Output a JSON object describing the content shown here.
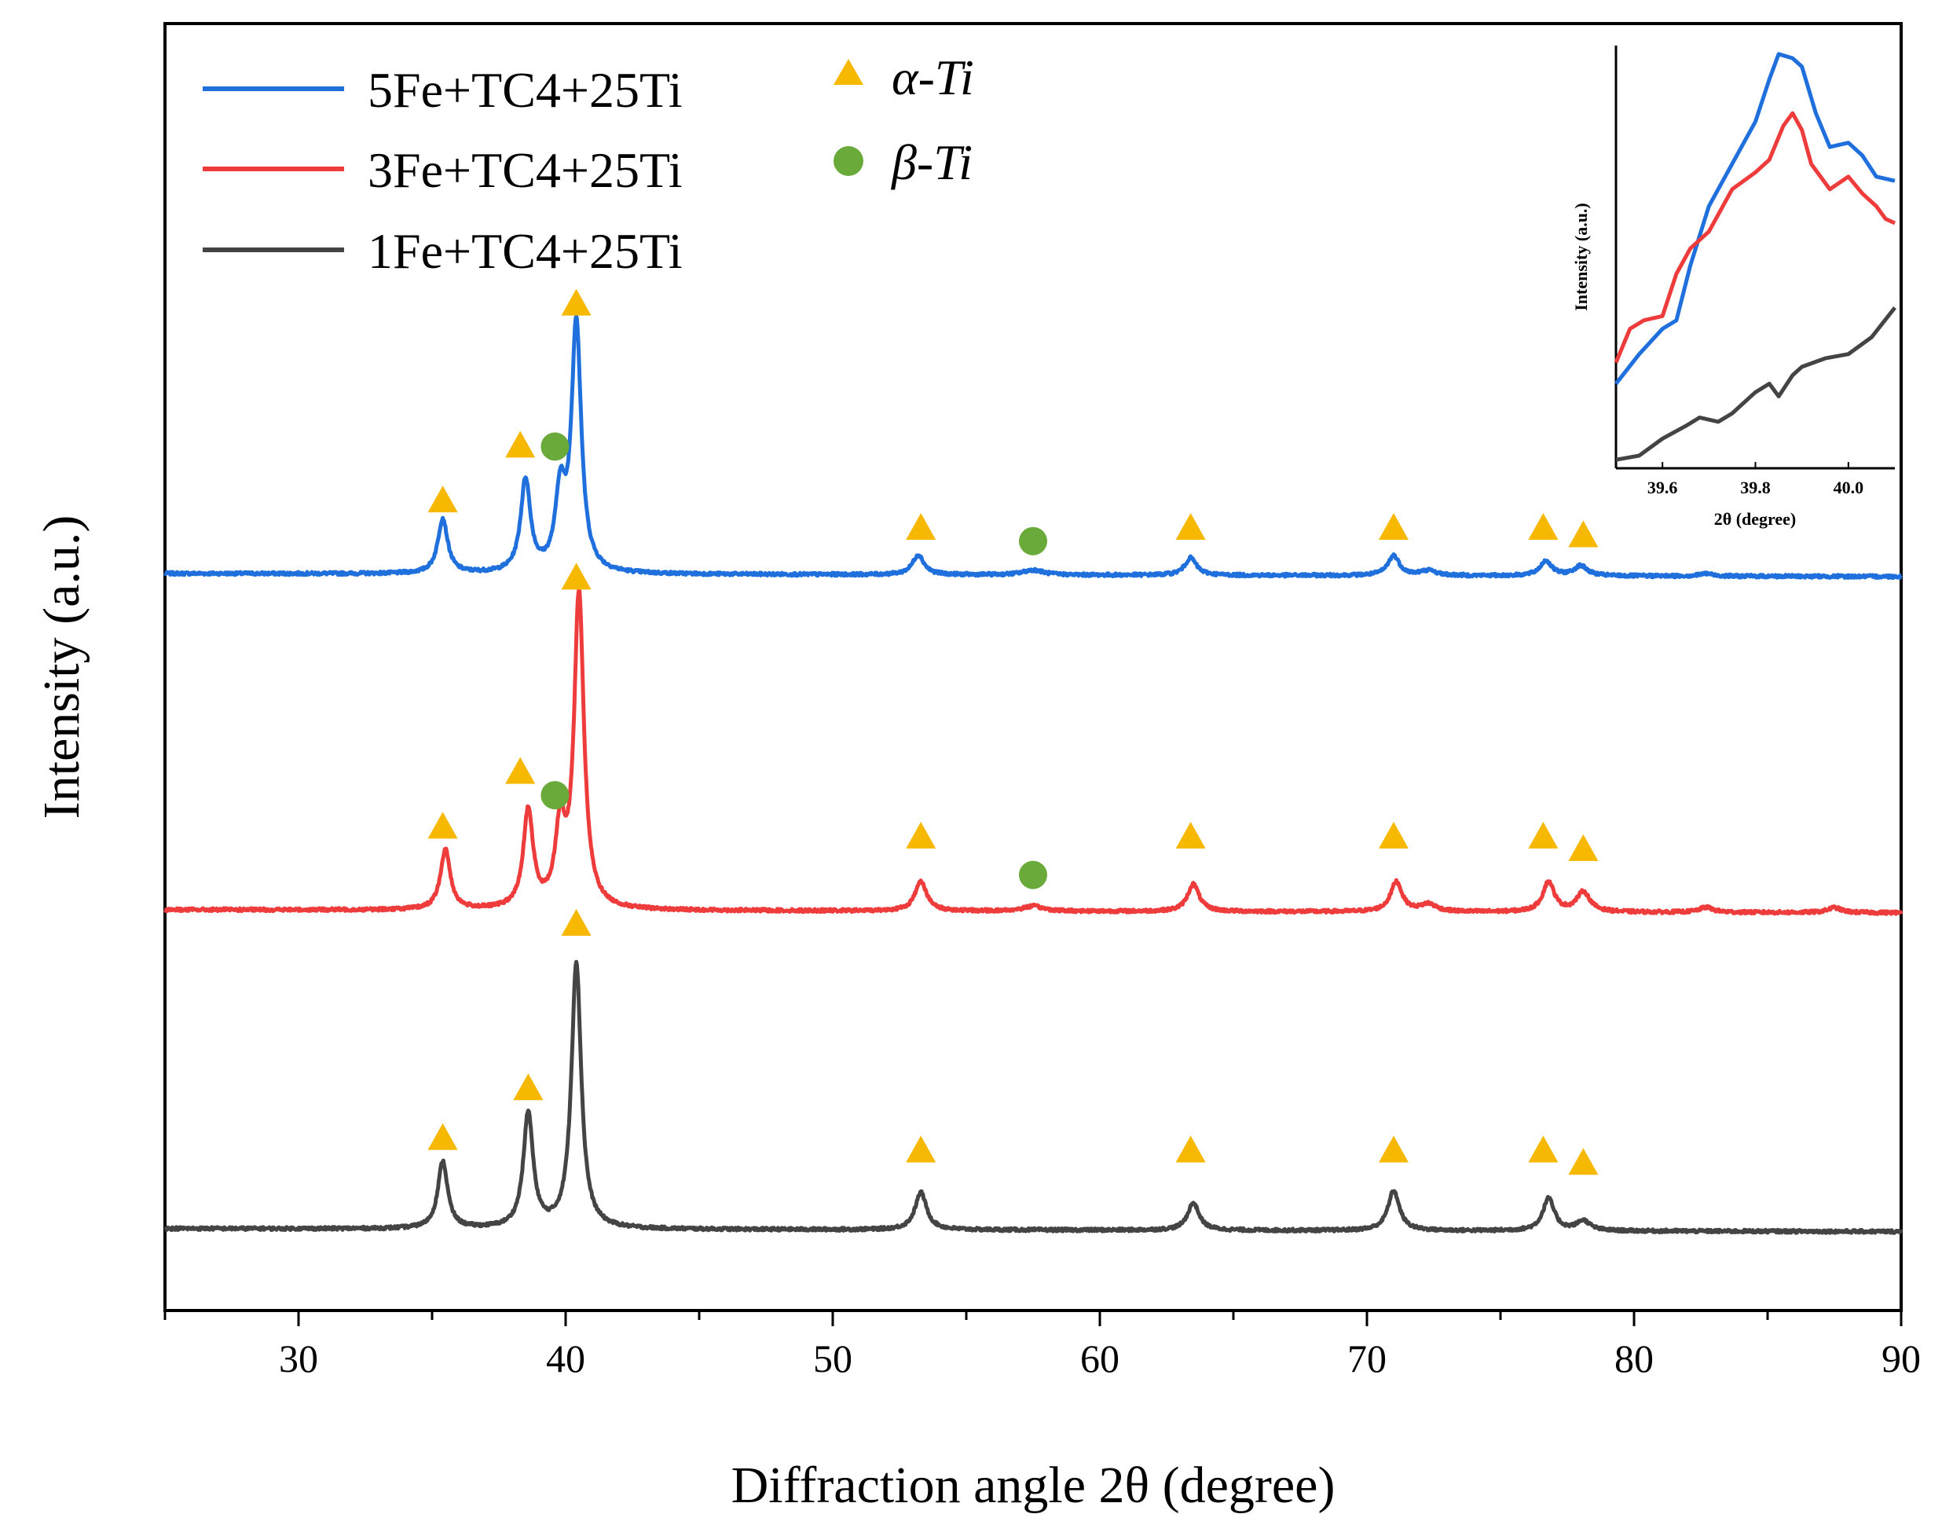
{
  "chart_data": {
    "type": "line",
    "title": "",
    "xlabel": "Diffraction angle 2θ (degree)",
    "ylabel": "Intensity (a.u.)",
    "xlim": [
      25,
      90
    ],
    "x_ticks": [
      30,
      40,
      50,
      60,
      70,
      80,
      90
    ],
    "grid": false,
    "legend_position": "top-left",
    "colors": {
      "blue": "#1f6fdc",
      "red": "#ee3b3b",
      "gray": "#444444",
      "alpha": "#f6b800",
      "beta": "#6aaa3a"
    },
    "series": [
      {
        "name": "5Fe+TC4+25Ti",
        "color": "#1f6fdc",
        "baseline": 0.0,
        "peaks": [
          {
            "x": 35.4,
            "h": 0.22,
            "w": 0.22
          },
          {
            "x": 38.5,
            "h": 0.37,
            "w": 0.22
          },
          {
            "x": 39.8,
            "h": 0.3,
            "w": 0.22
          },
          {
            "x": 40.4,
            "h": 1.0,
            "w": 0.22
          },
          {
            "x": 53.2,
            "h": 0.08,
            "w": 0.26
          },
          {
            "x": 57.5,
            "h": 0.02,
            "w": 0.45
          },
          {
            "x": 63.4,
            "h": 0.07,
            "w": 0.26
          },
          {
            "x": 71.0,
            "h": 0.08,
            "w": 0.26
          },
          {
            "x": 72.3,
            "h": 0.02,
            "w": 0.35
          },
          {
            "x": 76.7,
            "h": 0.06,
            "w": 0.26
          },
          {
            "x": 78.0,
            "h": 0.04,
            "w": 0.3
          },
          {
            "x": 82.7,
            "h": 0.01,
            "w": 0.3
          }
        ]
      },
      {
        "name": "3Fe+TC4+25Ti",
        "color": "#ee3b3b",
        "baseline": -1.35,
        "peaks": [
          {
            "x": 35.5,
            "h": 0.24,
            "w": 0.22
          },
          {
            "x": 38.6,
            "h": 0.39,
            "w": 0.22
          },
          {
            "x": 39.8,
            "h": 0.31,
            "w": 0.22
          },
          {
            "x": 40.5,
            "h": 1.26,
            "w": 0.22
          },
          {
            "x": 53.3,
            "h": 0.12,
            "w": 0.26
          },
          {
            "x": 57.5,
            "h": 0.02,
            "w": 0.45
          },
          {
            "x": 63.5,
            "h": 0.11,
            "w": 0.26
          },
          {
            "x": 71.1,
            "h": 0.12,
            "w": 0.26
          },
          {
            "x": 72.3,
            "h": 0.03,
            "w": 0.35
          },
          {
            "x": 76.8,
            "h": 0.12,
            "w": 0.26
          },
          {
            "x": 78.1,
            "h": 0.08,
            "w": 0.3
          },
          {
            "x": 82.7,
            "h": 0.02,
            "w": 0.3
          },
          {
            "x": 87.5,
            "h": 0.02,
            "w": 0.3
          }
        ]
      },
      {
        "name": "1Fe+TC4+25Ti",
        "color": "#444444",
        "baseline": -2.63,
        "peaks": [
          {
            "x": 35.4,
            "h": 0.27,
            "w": 0.22
          },
          {
            "x": 38.6,
            "h": 0.46,
            "w": 0.22
          },
          {
            "x": 40.4,
            "h": 1.07,
            "w": 0.22
          },
          {
            "x": 53.3,
            "h": 0.15,
            "w": 0.26
          },
          {
            "x": 63.5,
            "h": 0.11,
            "w": 0.26
          },
          {
            "x": 71.0,
            "h": 0.16,
            "w": 0.26
          },
          {
            "x": 76.8,
            "h": 0.13,
            "w": 0.26
          },
          {
            "x": 78.1,
            "h": 0.04,
            "w": 0.3
          }
        ]
      }
    ],
    "markers": [
      {
        "series": 0,
        "phase": "alpha",
        "x": 35.4,
        "y": 0.29
      },
      {
        "series": 0,
        "phase": "alpha",
        "x": 38.3,
        "y": 0.51
      },
      {
        "series": 0,
        "phase": "beta",
        "x": 39.6,
        "y": 0.51
      },
      {
        "series": 0,
        "phase": "alpha",
        "x": 40.4,
        "y": 1.08
      },
      {
        "series": 0,
        "phase": "alpha",
        "x": 53.3,
        "y": 0.18
      },
      {
        "series": 0,
        "phase": "beta",
        "x": 57.5,
        "y": 0.13
      },
      {
        "series": 0,
        "phase": "alpha",
        "x": 63.4,
        "y": 0.18
      },
      {
        "series": 0,
        "phase": "alpha",
        "x": 71.0,
        "y": 0.18
      },
      {
        "series": 0,
        "phase": "alpha",
        "x": 76.6,
        "y": 0.18
      },
      {
        "series": 0,
        "phase": "alpha",
        "x": 78.1,
        "y": 0.15
      },
      {
        "series": 1,
        "phase": "alpha",
        "x": 35.4,
        "y": -1.02
      },
      {
        "series": 1,
        "phase": "alpha",
        "x": 38.3,
        "y": -0.8
      },
      {
        "series": 1,
        "phase": "beta",
        "x": 39.6,
        "y": -0.89
      },
      {
        "series": 1,
        "phase": "alpha",
        "x": 40.4,
        "y": -0.02
      },
      {
        "series": 1,
        "phase": "alpha",
        "x": 53.3,
        "y": -1.06
      },
      {
        "series": 1,
        "phase": "beta",
        "x": 57.5,
        "y": -1.21
      },
      {
        "series": 1,
        "phase": "alpha",
        "x": 63.4,
        "y": -1.06
      },
      {
        "series": 1,
        "phase": "alpha",
        "x": 71.0,
        "y": -1.06
      },
      {
        "series": 1,
        "phase": "alpha",
        "x": 76.6,
        "y": -1.06
      },
      {
        "series": 1,
        "phase": "alpha",
        "x": 78.1,
        "y": -1.11
      },
      {
        "series": 2,
        "phase": "alpha",
        "x": 35.4,
        "y": -2.27
      },
      {
        "series": 2,
        "phase": "alpha",
        "x": 38.6,
        "y": -2.07
      },
      {
        "series": 2,
        "phase": "alpha",
        "x": 40.4,
        "y": -1.41
      },
      {
        "series": 2,
        "phase": "alpha",
        "x": 53.3,
        "y": -2.32
      },
      {
        "series": 2,
        "phase": "alpha",
        "x": 63.4,
        "y": -2.32
      },
      {
        "series": 2,
        "phase": "alpha",
        "x": 71.0,
        "y": -2.32
      },
      {
        "series": 2,
        "phase": "alpha",
        "x": 76.6,
        "y": -2.32
      },
      {
        "series": 2,
        "phase": "alpha",
        "x": 78.1,
        "y": -2.37
      }
    ],
    "phase_legend": {
      "alpha": "α-Ti",
      "beta": "β-Ti"
    },
    "inset": {
      "xlabel": "2θ (degree)",
      "ylabel": "Intensity (a.u.)",
      "xlim": [
        39.5,
        40.1
      ],
      "x_ticks": [
        "39.6",
        "39.8",
        "40.0"
      ],
      "series": [
        {
          "name": "5Fe+TC4+25Ti",
          "x": [
            39.5,
            39.55,
            39.6,
            39.63,
            39.66,
            39.7,
            39.75,
            39.8,
            39.83,
            39.85,
            39.88,
            39.9,
            39.93,
            39.96,
            40.0,
            40.03,
            40.06,
            40.1
          ],
          "y": [
            0.2,
            0.27,
            0.33,
            0.35,
            0.48,
            0.62,
            0.72,
            0.82,
            0.92,
            0.98,
            0.97,
            0.95,
            0.84,
            0.76,
            0.77,
            0.74,
            0.69,
            0.68
          ]
        },
        {
          "name": "3Fe+TC4+25Ti",
          "x": [
            39.5,
            39.53,
            39.56,
            39.6,
            39.63,
            39.66,
            39.7,
            39.75,
            39.8,
            39.83,
            39.86,
            39.88,
            39.9,
            39.92,
            39.96,
            40.0,
            40.03,
            40.06,
            40.08,
            40.1
          ],
          "y": [
            0.25,
            0.33,
            0.35,
            0.36,
            0.46,
            0.52,
            0.56,
            0.66,
            0.7,
            0.73,
            0.81,
            0.84,
            0.8,
            0.72,
            0.66,
            0.69,
            0.65,
            0.62,
            0.59,
            0.58
          ]
        },
        {
          "name": "1Fe+TC4+25Ti",
          "x": [
            39.5,
            39.55,
            39.6,
            39.65,
            39.68,
            39.72,
            39.75,
            39.8,
            39.83,
            39.85,
            39.88,
            39.9,
            39.95,
            40.0,
            40.05,
            40.1
          ],
          "y": [
            0.02,
            0.03,
            0.07,
            0.1,
            0.12,
            0.11,
            0.13,
            0.18,
            0.2,
            0.17,
            0.22,
            0.24,
            0.26,
            0.27,
            0.31,
            0.38
          ]
        }
      ]
    }
  }
}
